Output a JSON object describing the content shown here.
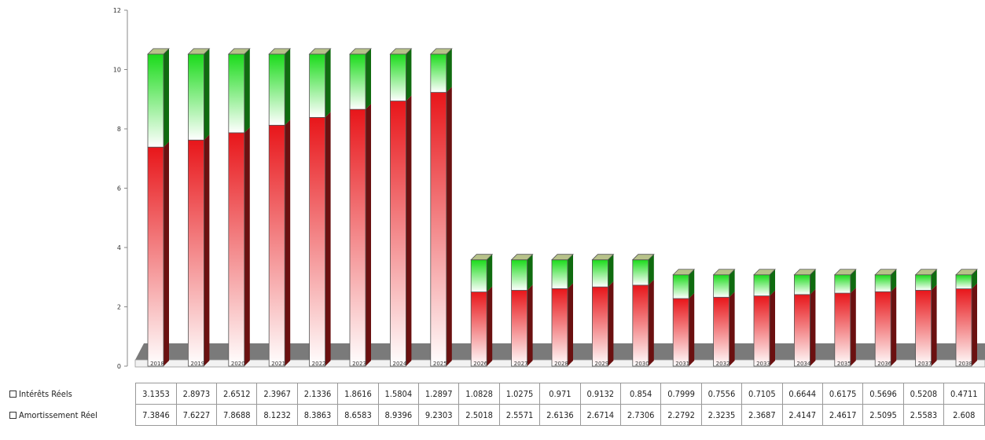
{
  "chart_data": {
    "type": "bar",
    "stacked": true,
    "ylim": [
      0,
      12
    ],
    "yticks": [
      "0",
      "2",
      "4",
      "6",
      "8",
      "10",
      "12"
    ],
    "categories": [
      "2018",
      "2019",
      "2020",
      "2021",
      "2022",
      "2023",
      "2024",
      "2025",
      "2026",
      "2027",
      "2028",
      "2029",
      "2030",
      "2031",
      "2032",
      "2033",
      "2034",
      "2035",
      "2036",
      "2037",
      "2038"
    ],
    "series": [
      {
        "name": "Amortissement Réel",
        "color": "#e8161a",
        "values": [
          7.3846,
          7.6227,
          7.8688,
          8.1232,
          8.3863,
          8.6583,
          8.9396,
          9.2303,
          2.5018,
          2.5571,
          2.6136,
          2.6714,
          2.7306,
          2.2792,
          2.3235,
          2.3687,
          2.4147,
          2.4617,
          2.5095,
          2.5583,
          2.608
        ],
        "labels": [
          "7.3846",
          "7.6227",
          "7.8688",
          "8.1232",
          "8.3863",
          "8.6583",
          "8.9396",
          "9.2303",
          "2.5018",
          "2.5571",
          "2.6136",
          "2.6714",
          "2.7306",
          "2.2792",
          "2.3235",
          "2.3687",
          "2.4147",
          "2.4617",
          "2.5095",
          "2.5583",
          "2.608"
        ]
      },
      {
        "name": "Intérêts Réels",
        "color": "#1adb1a",
        "values": [
          3.1353,
          2.8973,
          2.6512,
          2.3967,
          2.1336,
          1.8616,
          1.5804,
          1.2897,
          1.0828,
          1.0275,
          0.971,
          0.9132,
          0.854,
          0.7999,
          0.7556,
          0.7105,
          0.6644,
          0.6175,
          0.5696,
          0.5208,
          0.4711
        ],
        "labels": [
          "3.1353",
          "2.8973",
          "2.6512",
          "2.3967",
          "2.1336",
          "1.8616",
          "1.5804",
          "1.2897",
          "1.0828",
          "1.0275",
          "0.971",
          "0.9132",
          "0.854",
          "0.7999",
          "0.7556",
          "0.7105",
          "0.6644",
          "0.6175",
          "0.5696",
          "0.5208",
          "0.4711"
        ]
      }
    ],
    "grid": false,
    "legend": "data table below chart"
  }
}
